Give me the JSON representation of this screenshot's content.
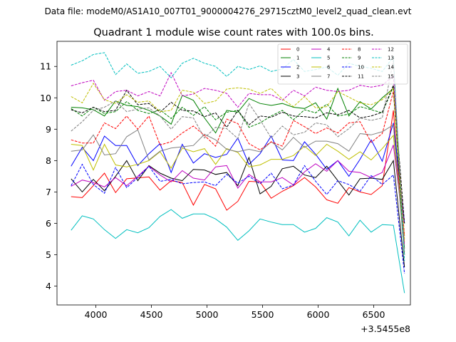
{
  "chart_data": {
    "type": "line",
    "suptitle": "Data file: modeM0/AS1A10_007T01_9000004276_29715cztM0_level2_quad_clean.evt",
    "title": "Quadrant 1 module wise count rates with 100.0s bins.",
    "x_offset_label": "+3.5455e8",
    "xlim": [
      3650,
      6830
    ],
    "ylim": [
      3.4,
      11.8
    ],
    "xticks": [
      4000,
      4500,
      5000,
      5500,
      6000,
      6500
    ],
    "yticks": [
      4,
      5,
      6,
      7,
      8,
      9,
      10,
      11
    ],
    "x": [
      3777,
      3877,
      3977,
      4077,
      4177,
      4277,
      4377,
      4477,
      4577,
      4677,
      4777,
      4877,
      4977,
      5077,
      5177,
      5277,
      5377,
      5477,
      5577,
      5677,
      5777,
      5877,
      5977,
      6077,
      6177,
      6277,
      6377,
      6477,
      6577,
      6677,
      6777
    ],
    "legend_position": "upper-right",
    "series": [
      {
        "name": "0",
        "color": "#ff0000",
        "style": "solid",
        "values": [
          6.85,
          6.82,
          7.2,
          7.6,
          6.98,
          7.42,
          7.45,
          7.48,
          7.06,
          7.36,
          7.3,
          6.58,
          7.24,
          7.1,
          6.42,
          6.7,
          7.34,
          7.32,
          6.8,
          7.02,
          7.2,
          7.46,
          7.16,
          6.75,
          6.64,
          7.14,
          7.0,
          6.92,
          7.2,
          9.6,
          5.0
        ]
      },
      {
        "name": "1",
        "color": "#008000",
        "style": "solid",
        "values": [
          9.7,
          9.68,
          9.62,
          9.42,
          9.9,
          9.76,
          9.72,
          9.6,
          9.42,
          9.16,
          10.08,
          9.92,
          9.36,
          8.88,
          9.6,
          9.54,
          9.98,
          9.82,
          9.76,
          9.82,
          9.7,
          9.66,
          9.84,
          9.32,
          10.3,
          9.42,
          9.88,
          9.64,
          10.0,
          10.3,
          5.2
        ]
      },
      {
        "name": "2",
        "color": "#0000ff",
        "style": "solid",
        "values": [
          7.82,
          8.42,
          8.0,
          8.78,
          8.48,
          8.48,
          7.84,
          8.22,
          8.54,
          7.62,
          8.52,
          7.92,
          8.22,
          8.1,
          8.2,
          8.72,
          7.88,
          8.22,
          8.78,
          8.02,
          8.0,
          8.6,
          8.2,
          7.72,
          8.0,
          7.5,
          8.04,
          8.66,
          7.98,
          9.2,
          6.0
        ]
      },
      {
        "name": "3",
        "color": "#000000",
        "style": "solid",
        "values": [
          7.42,
          7.0,
          7.4,
          7.04,
          7.5,
          8.0,
          7.36,
          7.84,
          7.6,
          7.44,
          7.36,
          7.72,
          7.7,
          7.56,
          7.62,
          7.2,
          8.1,
          6.94,
          7.18,
          7.74,
          7.82,
          7.54,
          7.46,
          7.82,
          7.36,
          6.9,
          7.42,
          7.44,
          7.4,
          8.0,
          4.6
        ]
      },
      {
        "name": "4",
        "color": "#bf00bf",
        "style": "solid",
        "values": [
          7.18,
          7.38,
          7.3,
          7.16,
          7.46,
          7.2,
          7.5,
          7.82,
          7.54,
          7.32,
          7.68,
          7.44,
          7.38,
          7.8,
          7.84,
          7.12,
          7.56,
          7.32,
          7.32,
          7.46,
          7.22,
          7.64,
          7.9,
          7.66,
          8.0,
          7.66,
          7.62,
          7.46,
          7.62,
          8.5,
          5.6
        ]
      },
      {
        "name": "5",
        "color": "#00bfbf",
        "style": "solid",
        "values": [
          5.78,
          6.24,
          6.14,
          5.8,
          5.52,
          5.8,
          5.7,
          5.86,
          6.22,
          6.44,
          6.16,
          6.3,
          6.3,
          6.14,
          5.88,
          5.46,
          5.76,
          6.14,
          6.04,
          5.96,
          5.96,
          5.72,
          5.84,
          6.18,
          6.04,
          5.6,
          6.1,
          5.72,
          5.96,
          5.94,
          3.78
        ]
      },
      {
        "name": "6",
        "color": "#bfbf00",
        "style": "solid",
        "values": [
          8.52,
          8.48,
          7.7,
          8.52,
          7.86,
          7.8,
          7.88,
          8.0,
          8.28,
          7.76,
          8.4,
          8.28,
          8.38,
          7.88,
          8.38,
          8.26,
          7.8,
          7.86,
          8.04,
          8.04,
          8.16,
          8.46,
          8.16,
          8.52,
          8.3,
          8.04,
          8.28,
          8.02,
          8.38,
          8.8,
          5.4
        ]
      },
      {
        "name": "7",
        "color": "#808080",
        "style": "solid",
        "values": [
          8.3,
          8.34,
          8.82,
          8.18,
          8.22,
          8.76,
          8.98,
          8.02,
          8.3,
          8.4,
          8.44,
          8.48,
          8.84,
          8.66,
          8.36,
          8.28,
          8.36,
          8.28,
          8.6,
          8.34,
          8.74,
          8.42,
          8.62,
          8.62,
          8.54,
          8.3,
          8.86,
          8.82,
          8.92,
          9.14,
          5.0
        ]
      },
      {
        "name": "8",
        "color": "#ff0000",
        "style": "dashed",
        "values": [
          8.66,
          8.56,
          8.56,
          9.2,
          9.02,
          9.42,
          9.0,
          9.42,
          8.5,
          8.6,
          8.88,
          9.1,
          8.8,
          8.46,
          9.32,
          9.18,
          8.54,
          8.34,
          8.6,
          8.46,
          9.28,
          9.08,
          8.86,
          9.04,
          8.88,
          9.2,
          9.24,
          8.58,
          8.86,
          10.2,
          5.6
        ]
      },
      {
        "name": "9",
        "color": "#008000",
        "style": "dashed",
        "values": [
          9.66,
          9.42,
          9.7,
          9.5,
          9.56,
          9.88,
          9.6,
          9.5,
          9.62,
          9.34,
          9.7,
          9.44,
          9.72,
          9.3,
          9.54,
          9.6,
          9.06,
          9.2,
          9.42,
          9.6,
          9.3,
          9.62,
          9.52,
          9.8,
          9.42,
          9.48,
          9.72,
          9.62,
          9.52,
          10.36,
          5.0
        ]
      },
      {
        "name": "10",
        "color": "#0000ff",
        "style": "dashed",
        "values": [
          7.2,
          7.88,
          7.24,
          6.96,
          7.78,
          7.14,
          7.46,
          7.82,
          7.34,
          7.4,
          7.26,
          7.3,
          7.32,
          7.2,
          7.56,
          7.28,
          7.5,
          7.26,
          7.6,
          7.1,
          7.22,
          7.84,
          7.34,
          6.92,
          7.36,
          7.24,
          7.02,
          7.52,
          7.24,
          7.54,
          4.4
        ]
      },
      {
        "name": "11",
        "color": "#000000",
        "style": "dashed",
        "values": [
          9.62,
          9.52,
          9.7,
          9.56,
          9.6,
          10.24,
          9.78,
          9.82,
          9.54,
          9.86,
          9.6,
          9.58,
          9.4,
          9.52,
          9.06,
          9.6,
          9.14,
          9.42,
          9.38,
          9.54,
          9.42,
          9.4,
          9.36,
          9.52,
          9.46,
          9.6,
          9.36,
          9.42,
          9.54,
          10.4,
          6.0
        ]
      },
      {
        "name": "12",
        "color": "#bf00bf",
        "style": "dashed",
        "values": [
          10.38,
          10.48,
          10.56,
          9.92,
          10.2,
          10.24,
          10.06,
          10.2,
          10.06,
          10.8,
          10.06,
          10.12,
          10.3,
          10.24,
          10.14,
          9.7,
          10.14,
          10.1,
          10.1,
          9.92,
          10.24,
          10.06,
          10.34,
          10.24,
          10.2,
          10.24,
          10.4,
          10.34,
          10.4,
          10.7,
          5.3
        ]
      },
      {
        "name": "13",
        "color": "#00bfbf",
        "style": "dashed",
        "values": [
          11.04,
          11.18,
          11.38,
          11.44,
          10.74,
          11.08,
          10.78,
          10.84,
          11.0,
          10.64,
          11.1,
          11.26,
          11.1,
          11.0,
          10.68,
          11.0,
          10.9,
          11.02,
          10.84,
          10.92,
          11.22,
          10.84,
          10.9,
          10.98,
          10.72,
          11.1,
          11.0,
          10.94,
          10.84,
          11.3,
          4.8
        ]
      },
      {
        "name": "14",
        "color": "#bfbf00",
        "style": "dashed",
        "values": [
          10.04,
          9.84,
          10.46,
          9.94,
          9.82,
          10.1,
          9.86,
          9.9,
          9.56,
          9.6,
          10.24,
          10.18,
          9.82,
          9.9,
          10.28,
          10.32,
          10.28,
          10.14,
          10.3,
          9.96,
          9.72,
          10.04,
          9.68,
          9.72,
          10.2,
          10.02,
          9.84,
          9.78,
          9.94,
          10.3,
          5.5
        ]
      },
      {
        "name": "15",
        "color": "#808080",
        "style": "dashed",
        "values": [
          8.94,
          9.24,
          9.6,
          9.7,
          9.9,
          9.56,
          9.64,
          9.68,
          9.42,
          9.0,
          9.4,
          9.36,
          8.72,
          9.06,
          9.02,
          8.7,
          9.82,
          9.3,
          8.72,
          9.1,
          8.82,
          8.9,
          9.2,
          9.14,
          8.76,
          9.02,
          9.36,
          9.28,
          9.36,
          11.2,
          5.1
        ]
      }
    ]
  }
}
